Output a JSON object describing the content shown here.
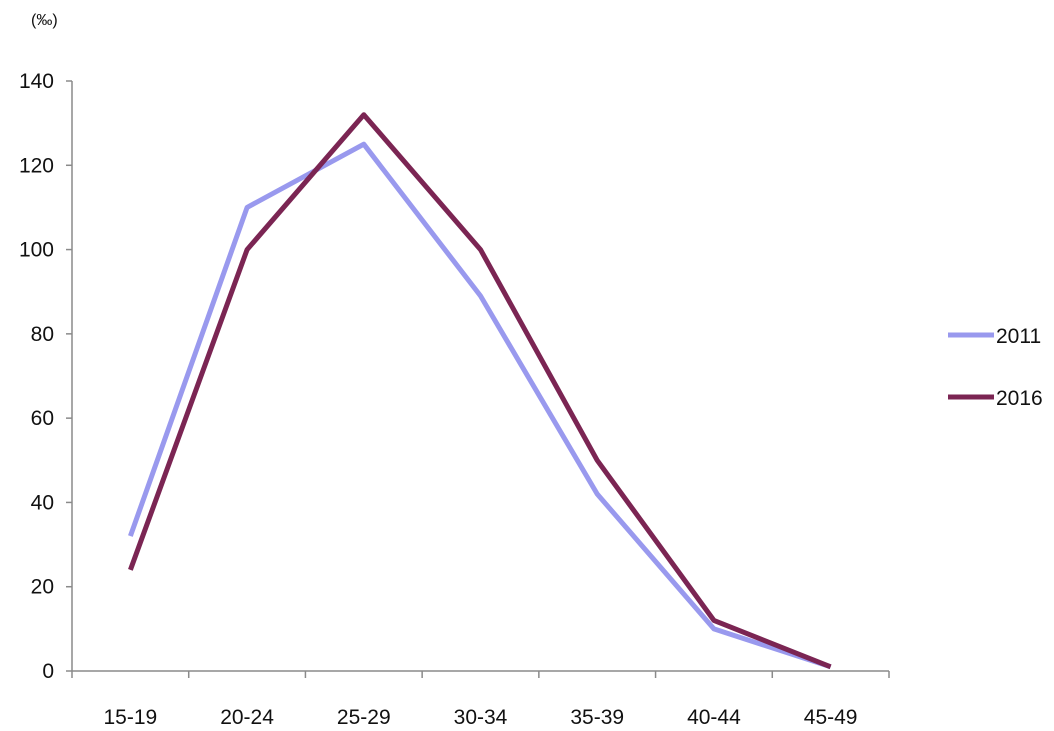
{
  "chart_data": {
    "type": "line",
    "ylabel": "(‰)",
    "categories": [
      "15-19",
      "20-24",
      "25-29",
      "30-34",
      "35-39",
      "40-44",
      "45-49"
    ],
    "ylim": [
      0,
      140
    ],
    "yticks": [
      0,
      20,
      40,
      60,
      80,
      100,
      120,
      140
    ],
    "grid": false,
    "legend_position": "right",
    "series": [
      {
        "name": "2011",
        "color": "#9999ee",
        "values": [
          32,
          110,
          125,
          89,
          42,
          10,
          1
        ]
      },
      {
        "name": "2016",
        "color": "#7b2553",
        "values": [
          24,
          100,
          132,
          100,
          50,
          12,
          1
        ]
      }
    ]
  }
}
